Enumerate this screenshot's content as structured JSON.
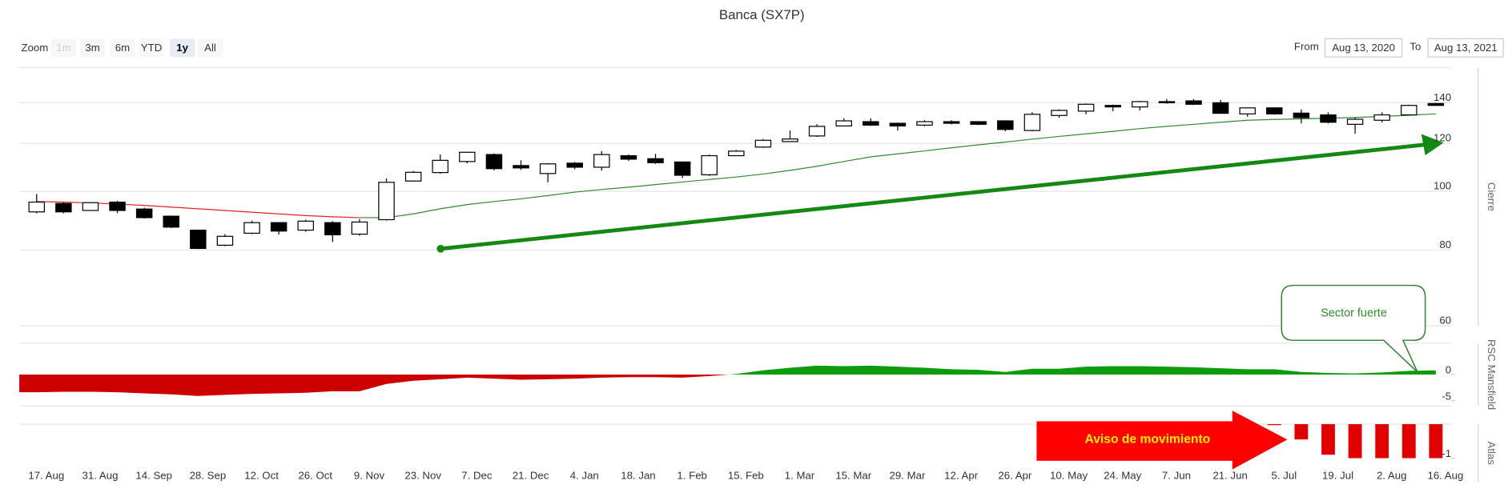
{
  "title": "Banca (SX7P)",
  "zoom": {
    "label": "Zoom",
    "buttons": [
      "1m",
      "3m",
      "6m",
      "YTD",
      "1y",
      "All"
    ],
    "selected": 4,
    "disabled": [
      0
    ]
  },
  "range": {
    "from_label": "From",
    "from": "Aug 13, 2020",
    "to_label": "To",
    "to": "Aug 13, 2021"
  },
  "annotations": {
    "movement": "Aviso de movimiento",
    "sector": "Sector fuerte"
  },
  "chart_data": {
    "type": "candlestick",
    "categories": [
      "17. Aug",
      null,
      "31. Aug",
      null,
      "14. Sep",
      null,
      "28. Sep",
      null,
      "12. Oct",
      null,
      "26. Oct",
      null,
      "9. Nov",
      null,
      "23. Nov",
      null,
      "7. Dec",
      null,
      "21. Dec",
      null,
      "4. Jan",
      null,
      "18. Jan",
      null,
      "1. Feb",
      null,
      "15. Feb",
      null,
      "1. Mar",
      null,
      "15. Mar",
      null,
      "29. Mar",
      null,
      "12. Apr",
      null,
      "26. Apr",
      null,
      "10. May",
      null,
      "24. May",
      null,
      "7. Jun",
      null,
      "21. Jun",
      null,
      "5. Jul",
      null,
      "19. Jul",
      null,
      "2. Aug",
      null,
      "16. Aug"
    ],
    "open": [
      92.5,
      95.5,
      93,
      96,
      93.5,
      91,
      86.3,
      81.5,
      85.3,
      88.8,
      86.3,
      88.8,
      85,
      89.8,
      104,
      107.4,
      112,
      115,
      110.3,
      107,
      111.3,
      109.6,
      114.5,
      113.2,
      111.8,
      106.5,
      114.5,
      118.3,
      120.8,
      123.4,
      128.2,
      130.3,
      129.5,
      128.6,
      130.3,
      130.3,
      130.7,
      126,
      133.4,
      135.6,
      138.6,
      137.8,
      140.6,
      141,
      140,
      134.2,
      137.3,
      134.6,
      133.7,
      129,
      131,
      133.7,
      139.6
    ],
    "high": [
      99,
      96,
      96,
      96.5,
      94,
      91.2,
      86.5,
      85,
      89.5,
      89,
      89.8,
      89.3,
      90,
      105,
      108,
      115,
      116.2,
      115.5,
      112.5,
      111.3,
      111.8,
      116.5,
      115,
      115.3,
      112,
      115,
      117,
      122,
      126,
      129,
      132,
      132,
      129.8,
      131,
      131,
      130.5,
      131,
      135,
      136.5,
      139.6,
      139,
      141,
      142,
      142,
      141.5,
      137.5,
      137.6,
      136.5,
      135,
      132.3,
      135,
      139,
      140
    ],
    "low": [
      92,
      92,
      93,
      92,
      90.2,
      87,
      80.3,
      81.2,
      85,
      84.9,
      85.8,
      82.5,
      84.5,
      89.5,
      103.8,
      107,
      111.2,
      108.3,
      108.5,
      103.5,
      108.8,
      108.2,
      112.3,
      111,
      105.2,
      106,
      114.3,
      118,
      120.8,
      123,
      128,
      128.2,
      126,
      128,
      129,
      128.6,
      125.6,
      125.6,
      132.2,
      134,
      135.6,
      136,
      139.5,
      138.8,
      134.3,
      132.8,
      133.8,
      129.4,
      129.5,
      124.5,
      130,
      133.5,
      138.5
    ],
    "close": [
      96,
      92.5,
      95.8,
      93,
      90.5,
      87.3,
      80.5,
      84.3,
      88.8,
      86,
      89.3,
      84.8,
      89,
      103.5,
      107.5,
      112.5,
      116,
      109,
      109.3,
      111,
      109.6,
      115,
      113,
      111.5,
      106.3,
      114.5,
      116.5,
      121.4,
      122,
      128,
      130.7,
      128.6,
      128.2,
      130.3,
      129.5,
      129,
      126.5,
      134,
      136,
      139.2,
      137.8,
      140.6,
      140,
      139.2,
      134.5,
      137.3,
      134.2,
      132.3,
      130,
      131.5,
      133.7,
      138.6,
      138.6
    ],
    "up_color": "#ffffff",
    "down_color": "#000000",
    "moving_average": {
      "values": [
        96.2,
        96.0,
        95.7,
        95.3,
        94.8,
        94.2,
        93.6,
        93.0,
        92.4,
        91.8,
        91.2,
        90.8,
        90.5,
        90.5,
        91.8,
        93.6,
        95.1,
        96.2,
        97.2,
        98.4,
        99.7,
        100.7,
        101.6,
        102.6,
        103.6,
        104.6,
        105.6,
        106.8,
        108.3,
        110.0,
        112.0,
        114.0,
        115.3,
        116.6,
        118.0,
        119.3,
        120.6,
        121.9,
        123.2,
        124.4,
        125.6,
        126.9,
        128.0,
        129.0,
        130.0,
        131.0,
        131.4,
        131.7,
        132.0,
        132.4,
        132.9,
        133.5,
        134.2
      ],
      "rising_color": "#2e8b2e",
      "falling_color": "#e02020"
    },
    "ylabel": "Cierre",
    "ylim": [
      60,
      160
    ],
    "yticks": [
      60,
      80,
      100,
      120,
      140
    ],
    "log_scale": true,
    "grid": true,
    "panes": [
      {
        "type": "area",
        "ylabel": "RSC Mansfield",
        "ylim": [
          -6,
          6
        ],
        "yticks": [
          0,
          -5
        ],
        "positive_color": "#0c9c0c",
        "negative_color": "#cc0000",
        "values": [
          -3.4,
          -3.3,
          -3.3,
          -3.4,
          -3.6,
          -3.8,
          -4.1,
          -3.9,
          -3.7,
          -3.6,
          -3.5,
          -3.2,
          -3.2,
          -1.8,
          -1.2,
          -0.9,
          -0.6,
          -0.8,
          -1.0,
          -0.9,
          -0.8,
          -0.6,
          -0.5,
          -0.5,
          -0.6,
          -0.3,
          0.1,
          0.8,
          1.3,
          1.7,
          1.6,
          1.7,
          1.5,
          1.3,
          1.0,
          0.9,
          0.5,
          1.1,
          1.1,
          1.5,
          1.6,
          1.6,
          1.5,
          1.4,
          1.2,
          1.0,
          1.0,
          0.5,
          0.3,
          0.2,
          0.4,
          0.7,
          0.8
        ]
      },
      {
        "type": "bar",
        "ylabel": "Atlas",
        "ylim": [
          -1.7,
          0
        ],
        "yticks": [
          -1
        ],
        "color": "#e00000",
        "values": [
          null,
          null,
          null,
          null,
          null,
          null,
          null,
          null,
          null,
          null,
          null,
          null,
          null,
          null,
          null,
          null,
          null,
          null,
          null,
          null,
          null,
          null,
          null,
          null,
          null,
          null,
          null,
          null,
          null,
          null,
          null,
          null,
          null,
          null,
          null,
          null,
          null,
          null,
          null,
          null,
          null,
          null,
          null,
          null,
          null,
          null,
          -0.03,
          -0.45,
          -0.9,
          -1,
          -1,
          -1,
          -1
        ]
      }
    ]
  }
}
